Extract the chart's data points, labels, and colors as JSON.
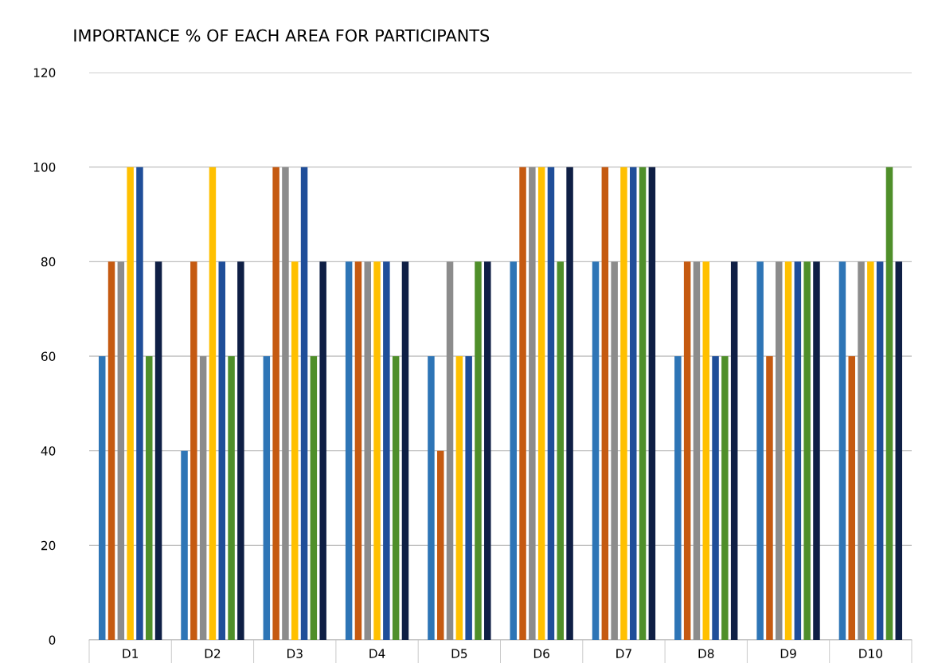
{
  "chart_data": {
    "type": "bar",
    "title": "IMPORTANCE % OF EACH AREA FOR PARTICIPANTS",
    "categories": [
      "D1",
      "D2",
      "D3",
      "D4",
      "D5",
      "D6",
      "D7",
      "D8",
      "D9",
      "D10"
    ],
    "series": [
      {
        "color": "#2e75b6",
        "values": [
          60,
          40,
          60,
          80,
          60,
          80,
          80,
          60,
          80,
          80
        ]
      },
      {
        "color": "#c55a11",
        "values": [
          80,
          80,
          100,
          80,
          40,
          100,
          100,
          80,
          60,
          60
        ]
      },
      {
        "color": "#8c8c8c",
        "values": [
          80,
          60,
          100,
          80,
          80,
          100,
          80,
          80,
          80,
          80
        ]
      },
      {
        "color": "#ffc000",
        "values": [
          100,
          100,
          80,
          80,
          60,
          100,
          100,
          80,
          80,
          80
        ]
      },
      {
        "color": "#1f4e99",
        "values": [
          100,
          80,
          100,
          80,
          60,
          100,
          100,
          60,
          80,
          80
        ]
      },
      {
        "color": "#4f8f2a",
        "values": [
          60,
          60,
          60,
          60,
          80,
          80,
          100,
          60,
          80,
          100
        ]
      },
      {
        "color": "#0f1f45",
        "values": [
          80,
          80,
          80,
          80,
          80,
          100,
          100,
          80,
          80,
          80
        ]
      }
    ],
    "ylim": [
      0,
      120
    ],
    "yticks": [
      0,
      20,
      40,
      60,
      80,
      100,
      120
    ],
    "grid": "y"
  }
}
